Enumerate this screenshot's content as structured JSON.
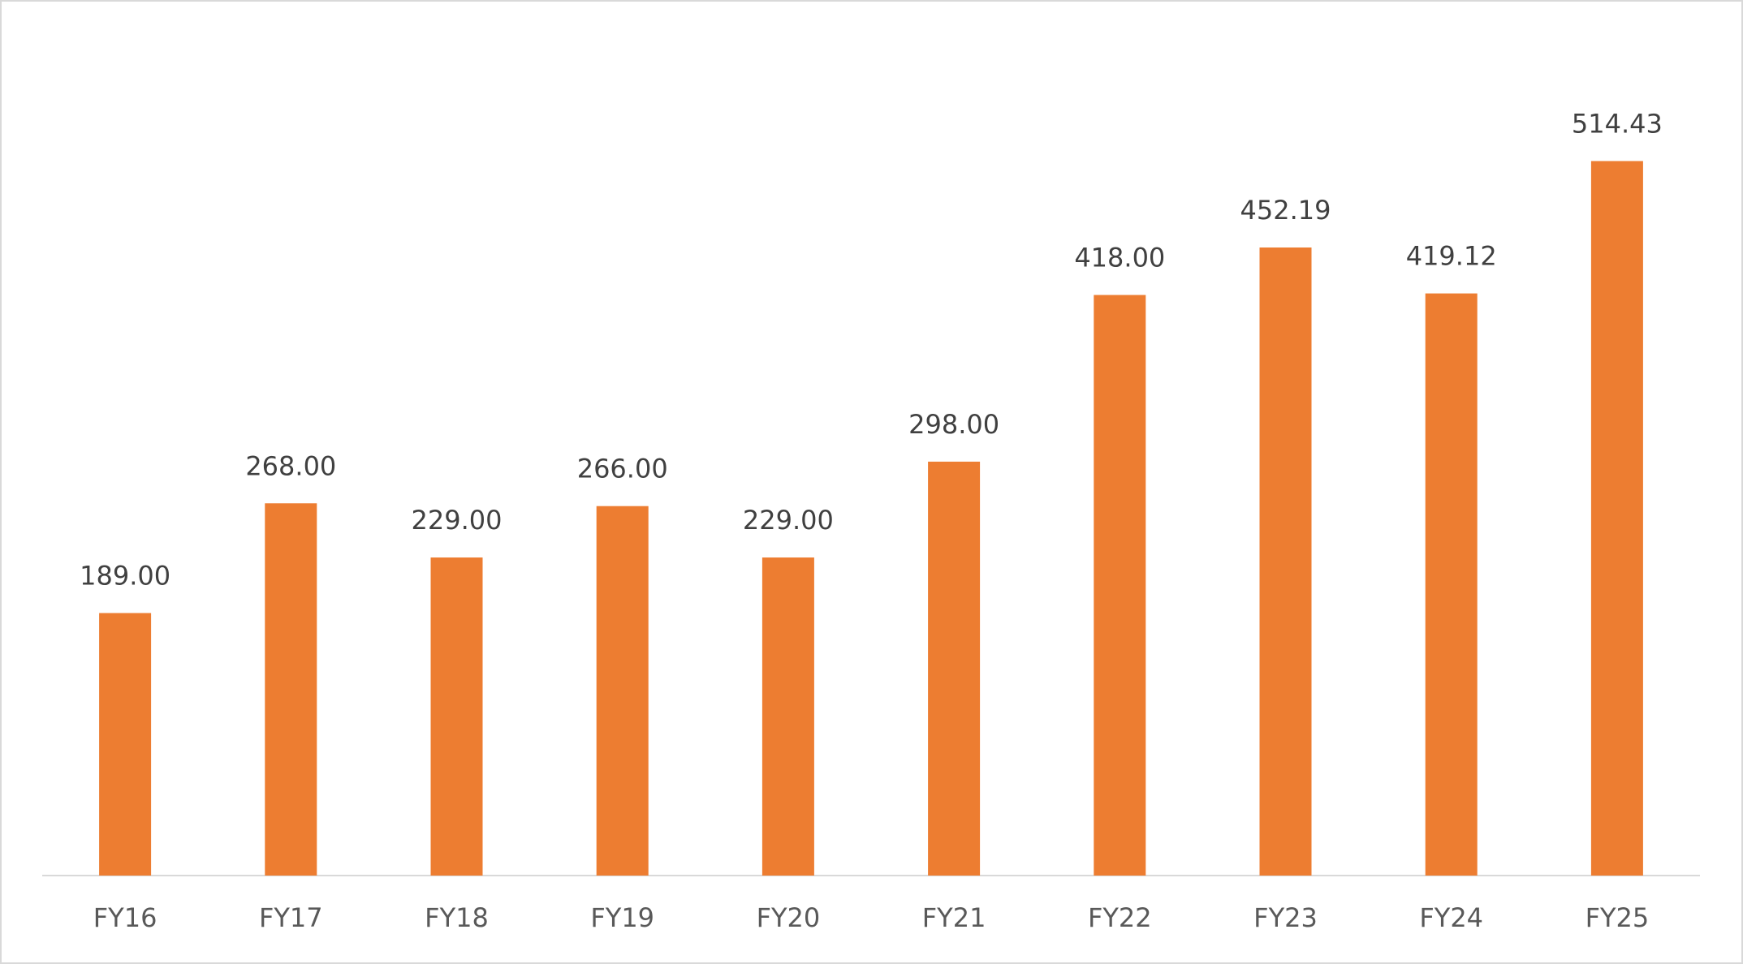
{
  "chart_data": {
    "type": "bar",
    "categories": [
      "FY16",
      "FY17",
      "FY18",
      "FY19",
      "FY20",
      "FY21",
      "FY22",
      "FY23",
      "FY24",
      "FY25"
    ],
    "values": [
      189,
      268,
      229,
      266,
      229,
      298,
      418,
      452.19,
      419.12,
      514.43
    ],
    "value_labels": [
      "189.00",
      "268.00",
      "229.00",
      "266.00",
      "229.00",
      "298.00",
      "418.00",
      "452.19",
      "419.12",
      "514.43"
    ],
    "color": "#ed7d31",
    "ylim": [
      0,
      600
    ]
  }
}
